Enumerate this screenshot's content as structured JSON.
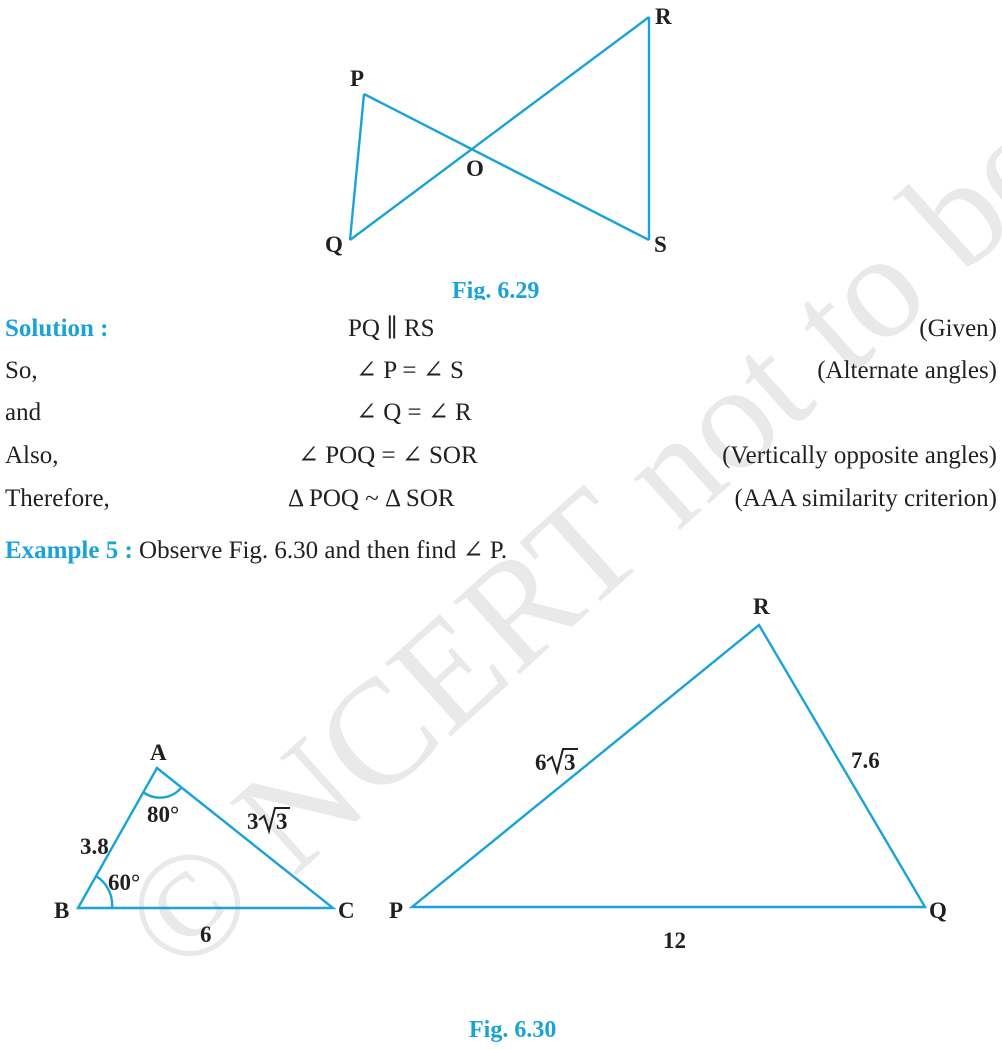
{
  "fig629": {
    "labels": {
      "P": "P",
      "Q": "Q",
      "R": "R",
      "S": "S",
      "O": "O"
    },
    "caption": "Fig. 6.29"
  },
  "solution": {
    "heading": "Solution :",
    "rows": [
      {
        "lead": "",
        "stmt": "PQ ∥ RS",
        "reason": "(Given)"
      },
      {
        "lead": "So,",
        "stmt": "∠ P = ∠ S",
        "reason": "(Alternate angles)"
      },
      {
        "lead": "and",
        "stmt": "∠ Q = ∠ R",
        "reason": ""
      },
      {
        "lead": "Also,",
        "stmt": "∠ POQ = ∠ SOR",
        "reason": "(Vertically opposite angles)"
      },
      {
        "lead": "Therefore,",
        "stmt": "Δ POQ ~ Δ SOR",
        "reason": "(AAA similarity criterion)"
      }
    ]
  },
  "example5": {
    "label": "Example 5 :",
    "text": " Observe Fig. 6.30 and then find ∠ P."
  },
  "fig630": {
    "small": {
      "A": "A",
      "B": "B",
      "C": "C",
      "AB": "3.8",
      "BC": "6",
      "AC_coef": "3",
      "AC_root": "3",
      "angleA": "80°",
      "angleB": "60°"
    },
    "large": {
      "P": "P",
      "Q": "Q",
      "R": "R",
      "PR_coef": "6",
      "PR_root": "3",
      "RQ": "7.6",
      "PQ": "12"
    },
    "caption": "Fig. 6.30"
  },
  "watermark": "© NCERT not to be republished",
  "colors": {
    "accent": "#1aa3d9",
    "text": "#231f20",
    "watermark": "#e6e6e6"
  }
}
